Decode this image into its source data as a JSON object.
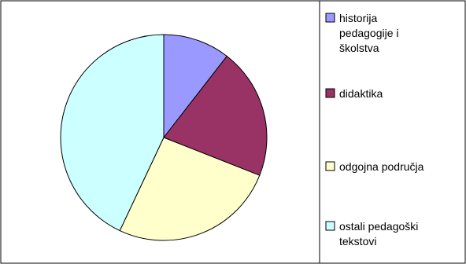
{
  "chart_data": {
    "type": "pie",
    "start": "top",
    "direction": "clockwise",
    "title": "",
    "legend_placement": "right",
    "slices": [
      {
        "label": "historija pedagogije i školstva",
        "label_lines": [
          "historija",
          "pedagogije i",
          "školstva"
        ],
        "value": 10.5,
        "color": "#9999ff"
      },
      {
        "label": "didaktika",
        "label_lines": [
          "didaktika"
        ],
        "value": 20.5,
        "color": "#993366"
      },
      {
        "label": "odgojna područja",
        "label_lines": [
          "odgojna područja"
        ],
        "value": 26,
        "color": "#ffffcc"
      },
      {
        "label": "ostali pedagoški tekstovi",
        "label_lines": [
          "ostali pedagoški",
          "tekstovi"
        ],
        "value": 43,
        "color": "#ccffff"
      }
    ]
  }
}
